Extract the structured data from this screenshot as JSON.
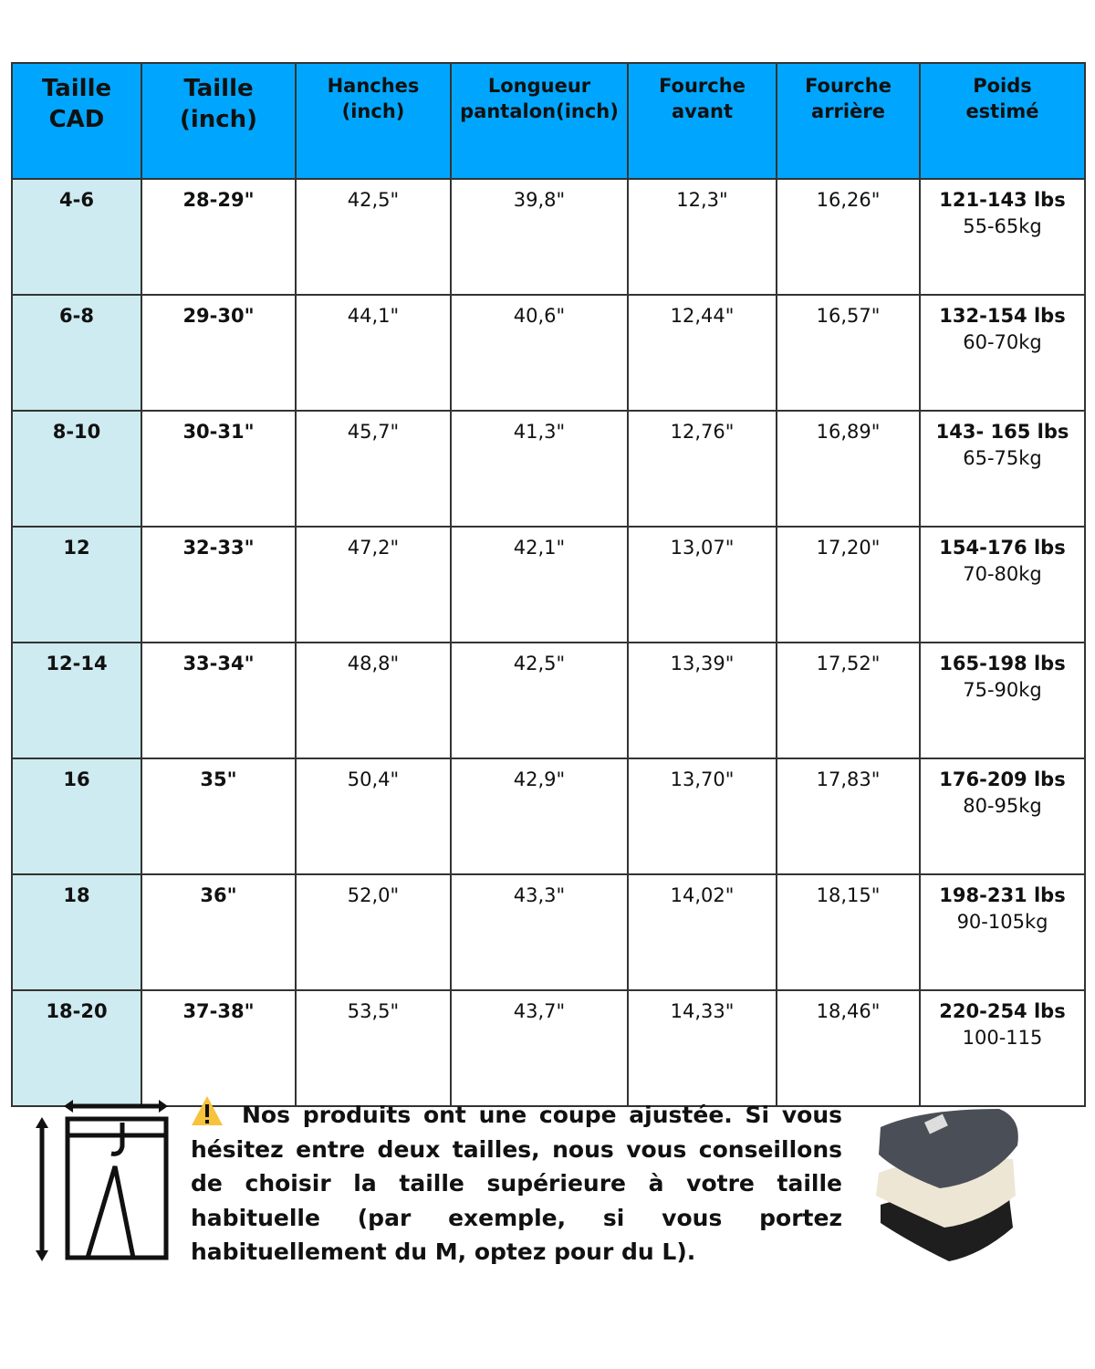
{
  "headers": [
    "Taille\nCAD",
    "Taille\n(inch)",
    "Hanches\n(inch)",
    "Longueur\npantalon(inch)",
    "Fourche\navant",
    "Fourche\narrière",
    "Poids\nestimé"
  ],
  "rows": [
    {
      "cad": "4-6",
      "taille": "28-29\"",
      "hanches": "42,5\"",
      "longueur": "39,8\"",
      "avant": "12,3\"",
      "arriere": "16,26\"",
      "lbs": "121-143 lbs",
      "kg": "55-65kg"
    },
    {
      "cad": "6-8",
      "taille": "29-30\"",
      "hanches": "44,1\"",
      "longueur": "40,6\"",
      "avant": "12,44\"",
      "arriere": "16,57\"",
      "lbs": "132-154 lbs",
      "kg": "60-70kg"
    },
    {
      "cad": "8-10",
      "taille": "30-31\"",
      "hanches": "45,7\"",
      "longueur": "41,3\"",
      "avant": "12,76\"",
      "arriere": "16,89\"",
      "lbs": "143- 165 lbs",
      "kg": "65-75kg"
    },
    {
      "cad": "12",
      "taille": "32-33\"",
      "hanches": "47,2\"",
      "longueur": "42,1\"",
      "avant": "13,07\"",
      "arriere": "17,20\"",
      "lbs": "154-176 lbs",
      "kg": "70-80kg"
    },
    {
      "cad": "12-14",
      "taille": "33-34\"",
      "hanches": "48,8\"",
      "longueur": "42,5\"",
      "avant": "13,39\"",
      "arriere": "17,52\"",
      "lbs": "165-198 lbs",
      "kg": "75-90kg"
    },
    {
      "cad": "16",
      "taille": "35\"",
      "hanches": "50,4\"",
      "longueur": "42,9\"",
      "avant": "13,70\"",
      "arriere": "17,83\"",
      "lbs": "176-209 lbs",
      "kg": "80-95kg"
    },
    {
      "cad": "18",
      "taille": "36\"",
      "hanches": "52,0\"",
      "longueur": "43,3\"",
      "avant": "14,02\"",
      "arriere": "18,15\"",
      "lbs": "198-231 lbs",
      "kg": "90-105kg"
    },
    {
      "cad": "18-20",
      "taille": "37-38\"",
      "hanches": "53,5\"",
      "longueur": "43,7\"",
      "avant": "14,33\"",
      "arriere": "18,46\"",
      "lbs": "220-254 lbs",
      "kg": "100-115"
    }
  ],
  "note": "Nos produits ont une coupe ajustée. Si vous hésitez entre deux tailles, nous vous conseillons de choisir la taille supérieure à votre taille habituelle (par exemple, si vous portez habituellement du M, optez pour du L).",
  "icons": {
    "warning": "warning-icon",
    "pants": "pants-measure-icon",
    "product": "jacket-stack-image"
  },
  "colors": {
    "header": "#00a6fe",
    "first_column": "#cdebf0",
    "border": "#333333"
  }
}
